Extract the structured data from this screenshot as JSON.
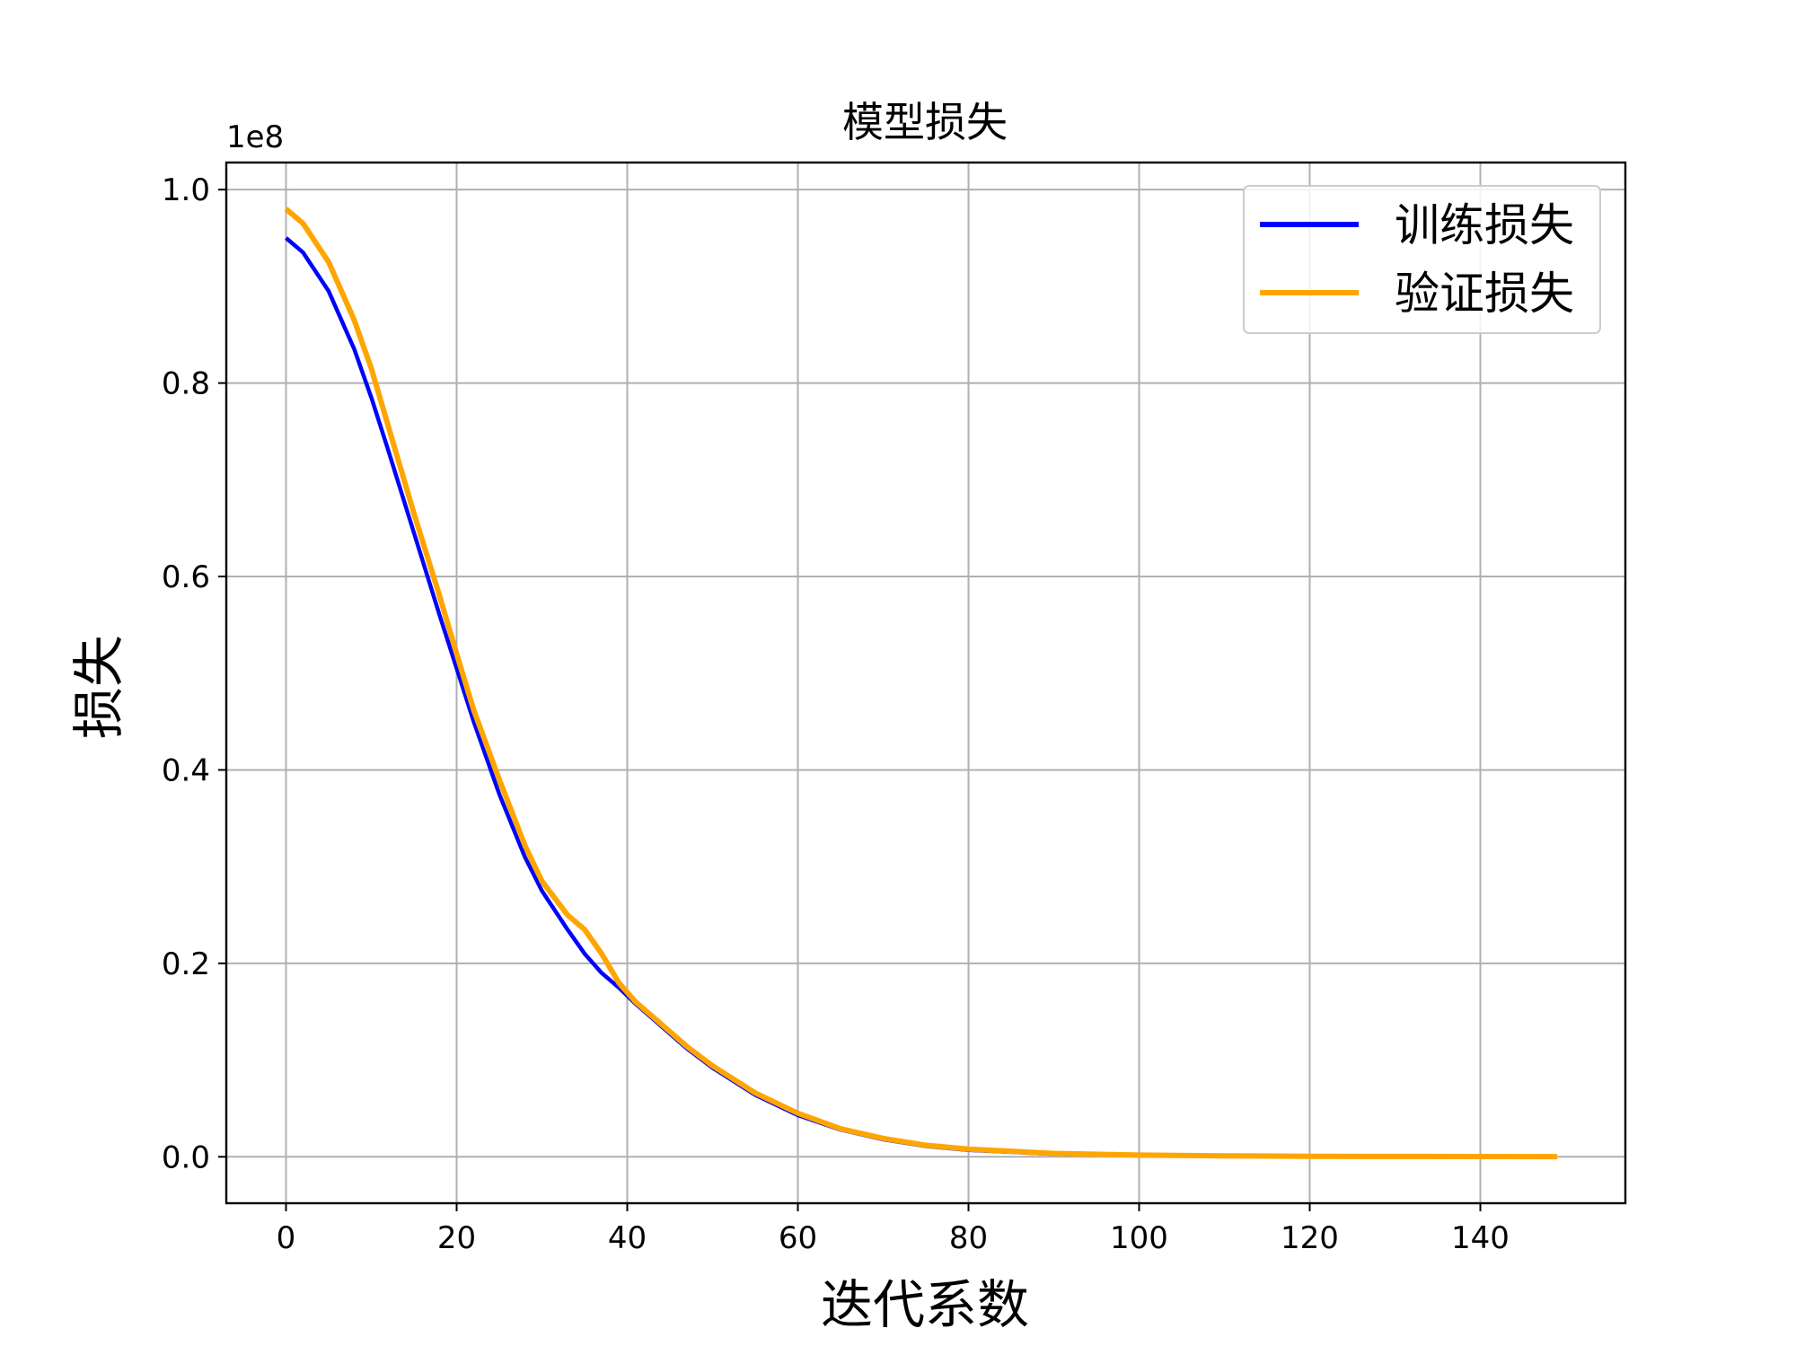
{
  "chart_data": {
    "type": "line",
    "title": "模型损失",
    "xlabel": "迭代系数",
    "ylabel": "损失",
    "y_offset_label": "1e8",
    "xlim": [
      -7,
      157
    ],
    "ylim": [
      -0.048,
      1.028
    ],
    "x_ticks": [
      0,
      20,
      40,
      60,
      80,
      100,
      120,
      140
    ],
    "y_ticks": [
      0.0,
      0.2,
      0.4,
      0.6,
      0.8,
      1.0
    ],
    "y_tick_labels": [
      "0.0",
      "0.2",
      "0.4",
      "0.6",
      "0.8",
      "1.0"
    ],
    "grid": true,
    "legend_position": "upper-right",
    "series": [
      {
        "name": "训练损失",
        "color": "#0000ff",
        "x": [
          0,
          2,
          5,
          8,
          10,
          12,
          15,
          18,
          20,
          22,
          25,
          28,
          30,
          33,
          35,
          37,
          39,
          41,
          44,
          47,
          50,
          55,
          60,
          65,
          70,
          75,
          80,
          90,
          100,
          110,
          120,
          130,
          140,
          149
        ],
        "y": [
          0.95,
          0.935,
          0.895,
          0.835,
          0.785,
          0.73,
          0.645,
          0.56,
          0.505,
          0.45,
          0.375,
          0.31,
          0.275,
          0.235,
          0.21,
          0.19,
          0.175,
          0.158,
          0.135,
          0.112,
          0.092,
          0.064,
          0.043,
          0.028,
          0.018,
          0.011,
          0.007,
          0.003,
          0.0015,
          0.0008,
          0.0005,
          0.0003,
          0.0002,
          0.0001
        ]
      },
      {
        "name": "验证损失",
        "color": "#ffa500",
        "x": [
          0,
          2,
          5,
          8,
          10,
          12,
          15,
          18,
          20,
          22,
          25,
          28,
          30,
          33,
          35,
          37,
          39,
          41,
          44,
          47,
          50,
          55,
          60,
          65,
          70,
          75,
          80,
          90,
          100,
          110,
          120,
          130,
          140,
          149
        ],
        "y": [
          0.98,
          0.965,
          0.925,
          0.865,
          0.815,
          0.755,
          0.665,
          0.58,
          0.52,
          0.462,
          0.39,
          0.322,
          0.285,
          0.25,
          0.235,
          0.21,
          0.18,
          0.16,
          0.137,
          0.114,
          0.094,
          0.066,
          0.045,
          0.029,
          0.019,
          0.012,
          0.008,
          0.0035,
          0.0018,
          0.001,
          0.0006,
          0.0004,
          0.0003,
          0.0002
        ]
      }
    ]
  }
}
